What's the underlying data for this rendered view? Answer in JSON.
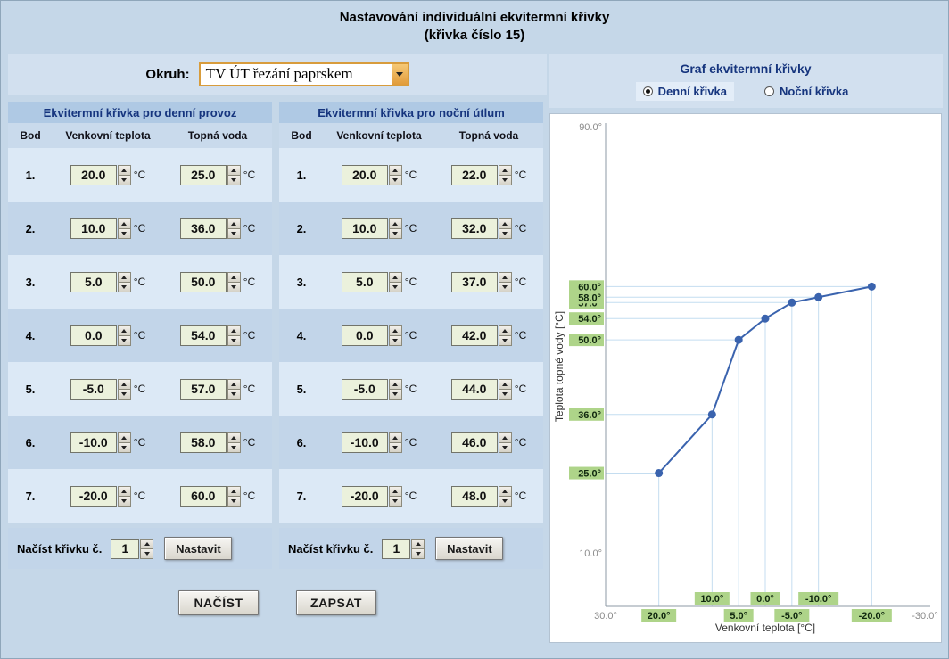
{
  "title": {
    "line1": "Nastavování individuální ekvitermní křivky",
    "line2": "(křivka číslo 15)"
  },
  "okruh": {
    "label": "Okruh:",
    "value": "TV ÚT řezání paprskem"
  },
  "panels": [
    {
      "title": "Ekvitermní křivka pro denní provoz",
      "columns": [
        "Bod",
        "Venkovní teplota",
        "Topná voda"
      ],
      "unit": "°C",
      "rows": [
        {
          "bod": "1.",
          "outdoor": "20.0",
          "water": "25.0"
        },
        {
          "bod": "2.",
          "outdoor": "10.0",
          "water": "36.0"
        },
        {
          "bod": "3.",
          "outdoor": "5.0",
          "water": "50.0"
        },
        {
          "bod": "4.",
          "outdoor": "0.0",
          "water": "54.0"
        },
        {
          "bod": "5.",
          "outdoor": "-5.0",
          "water": "57.0"
        },
        {
          "bod": "6.",
          "outdoor": "-10.0",
          "water": "58.0"
        },
        {
          "bod": "7.",
          "outdoor": "-20.0",
          "water": "60.0"
        }
      ],
      "load_label": "Načíst křivku č.",
      "load_value": "1",
      "load_button": "Nastavit"
    },
    {
      "title": "Ekvitermní křivka pro noční útlum",
      "columns": [
        "Bod",
        "Venkovní teplota",
        "Topná voda"
      ],
      "unit": "°C",
      "rows": [
        {
          "bod": "1.",
          "outdoor": "20.0",
          "water": "22.0"
        },
        {
          "bod": "2.",
          "outdoor": "10.0",
          "water": "32.0"
        },
        {
          "bod": "3.",
          "outdoor": "5.0",
          "water": "37.0"
        },
        {
          "bod": "4.",
          "outdoor": "0.0",
          "water": "42.0"
        },
        {
          "bod": "5.",
          "outdoor": "-5.0",
          "water": "44.0"
        },
        {
          "bod": "6.",
          "outdoor": "-10.0",
          "water": "46.0"
        },
        {
          "bod": "7.",
          "outdoor": "-20.0",
          "water": "48.0"
        }
      ],
      "load_label": "Načíst křivku č.",
      "load_value": "1",
      "load_button": "Nastavit"
    }
  ],
  "actions": {
    "nacist": "NAČÍST",
    "zapsat": "ZAPSAT"
  },
  "graph": {
    "title": "Graf ekvitermní křivky",
    "radios": [
      {
        "label": "Denní křivka",
        "checked": true
      },
      {
        "label": "Noční křivka",
        "checked": false
      }
    ]
  },
  "chart_data": {
    "type": "line",
    "x": [
      20,
      10,
      5,
      0,
      -5,
      -10,
      -20
    ],
    "series": [
      {
        "name": "Denní křivka",
        "values": [
          25,
          36,
          50,
          54,
          57,
          58,
          60
        ]
      },
      {
        "name": "Noční křivka",
        "values": [
          22,
          32,
          37,
          42,
          44,
          46,
          48
        ]
      }
    ],
    "active_series": 0,
    "xlabel": "Venkovní teplota [°C]",
    "ylabel": "Teplota topné vody [°C]",
    "xlim": [
      30,
      -30
    ],
    "ylim": [
      0,
      90
    ],
    "x_end_ticks": [
      "30.0°",
      "-30.0°"
    ],
    "y_end_ticks": [
      {
        "value": 90,
        "label": "90.0°"
      },
      {
        "value": 10,
        "label": "10.0°"
      }
    ],
    "line_color": "#3a63ae",
    "label_bg": "#aed489",
    "guide_color": "#c4ddf0",
    "axis_color": "#8e9aa6"
  },
  "colors": {
    "accent_navy": "#16357e",
    "page_background": "#c5d7e8",
    "input_background": "#ebf1dc",
    "tick_label_green": "#aed489",
    "curve_blue": "#3a63ae"
  }
}
